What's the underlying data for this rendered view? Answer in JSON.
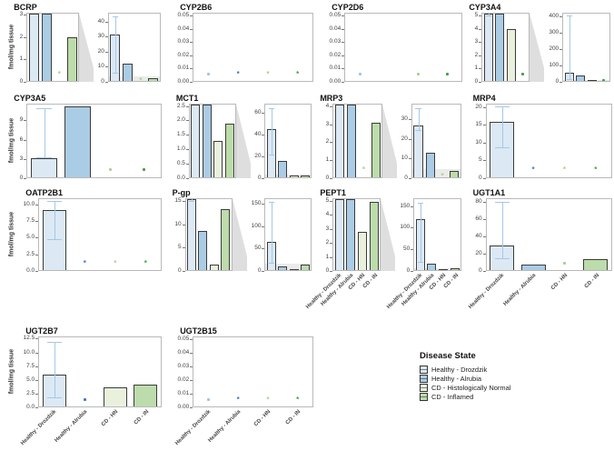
{
  "figure": {
    "ylabel": "fmol/mg tissue",
    "categories": [
      "Healthy - Drozdzik",
      "Healthy - Alrubia",
      "CD - HN",
      "CD - IN"
    ],
    "legend": {
      "title": "Disease State",
      "items": [
        {
          "label": "Healthy - Drozdzik",
          "color": "#dce9f5"
        },
        {
          "label": "Healthy - Alrubia",
          "color": "#abcce5"
        },
        {
          "label": "CD - Histologically Normal",
          "color": "#e9f1dd"
        },
        {
          "label": "CD - Inflamed",
          "color": "#bcdcab"
        }
      ]
    },
    "colors": {
      "fills": [
        "#dce9f5",
        "#abcce5",
        "#e9f1dd",
        "#bcdcab"
      ],
      "markers": [
        "#9cc6e6",
        "#3d7ab8",
        "#a9d18e",
        "#3fa33f"
      ],
      "bar_border": "#3b3b3b",
      "error_bar": "#a5c8e4",
      "panel_border": "#b9b9b9",
      "zoom_band": "#e3e3e3"
    }
  },
  "chart_data": [
    {
      "type": "bar",
      "title": "BCRP",
      "row": 0,
      "col": 0,
      "ylabel": true,
      "xlabels": false,
      "main": {
        "ylim": [
          0,
          3.1
        ],
        "ticks": [
          [
            0,
            "0"
          ],
          [
            1,
            "1"
          ],
          [
            2,
            "2"
          ],
          [
            3,
            "3"
          ]
        ]
      },
      "inset": {
        "ylim": [
          0,
          46
        ],
        "ticks": [
          [
            0,
            "0"
          ],
          [
            10,
            "10"
          ],
          [
            20,
            "20"
          ],
          [
            30,
            "30"
          ],
          [
            40,
            "40"
          ]
        ]
      },
      "groups": [
        {
          "kind": "bar",
          "value": 32,
          "error": [
            5,
            44
          ]
        },
        {
          "kind": "bar",
          "value": 12
        },
        {
          "kind": "marker",
          "glyph": "asterisk",
          "value": 0.3
        },
        {
          "kind": "bar",
          "value": 2
        }
      ]
    },
    {
      "type": "bar",
      "title": "CYP2B6",
      "row": 0,
      "col": 1,
      "ylabel": false,
      "xlabels": false,
      "main": {
        "ylim": [
          0,
          0.052
        ],
        "ticks": [
          [
            0,
            "0.00"
          ],
          [
            0.01,
            "0.01"
          ],
          [
            0.02,
            "0.02"
          ],
          [
            0.03,
            "0.03"
          ],
          [
            0.04,
            "0.04"
          ],
          [
            0.05,
            "0.05"
          ]
        ]
      },
      "groups": [
        {
          "kind": "marker",
          "glyph": "dot",
          "value": 0.005
        },
        {
          "kind": "marker",
          "glyph": "asterisk",
          "value": 0.005
        },
        {
          "kind": "marker",
          "glyph": "asterisk",
          "value": 0.005
        },
        {
          "kind": "marker",
          "glyph": "asterisk",
          "value": 0.005
        }
      ]
    },
    {
      "type": "bar",
      "title": "CYP2D6",
      "row": 0,
      "col": 2,
      "ylabel": false,
      "xlabels": false,
      "main": {
        "ylim": [
          0,
          0.052
        ],
        "ticks": [
          [
            0,
            "0.00"
          ],
          [
            0.01,
            "0.01"
          ],
          [
            0.02,
            "0.02"
          ],
          [
            0.03,
            "0.03"
          ],
          [
            0.04,
            "0.04"
          ],
          [
            0.05,
            "0.05"
          ]
        ]
      },
      "groups": [
        {
          "kind": "marker",
          "glyph": "dot",
          "value": 0.005
        },
        {
          "kind": "none"
        },
        {
          "kind": "marker",
          "glyph": "dot",
          "value": 0.005
        },
        {
          "kind": "marker",
          "glyph": "dot",
          "value": 0.005
        }
      ]
    },
    {
      "type": "bar",
      "title": "CYP3A4",
      "row": 0,
      "col": 3,
      "ylabel": false,
      "xlabels": false,
      "main": {
        "ylim": [
          0,
          5.2
        ],
        "ticks": [
          [
            0,
            "0"
          ],
          [
            1,
            "1"
          ],
          [
            2,
            "2"
          ],
          [
            3,
            "3"
          ],
          [
            4,
            "4"
          ],
          [
            5,
            "5"
          ]
        ]
      },
      "inset": {
        "ylim": [
          0,
          420
        ],
        "ticks": [
          [
            0,
            "0"
          ],
          [
            100,
            "100"
          ],
          [
            200,
            "200"
          ],
          [
            300,
            "300"
          ],
          [
            400,
            "400"
          ]
        ]
      },
      "groups": [
        {
          "kind": "bar",
          "value": 50,
          "error": [
            5,
            410
          ]
        },
        {
          "kind": "bar",
          "value": 35
        },
        {
          "kind": "bar",
          "value": 4
        },
        {
          "kind": "marker",
          "glyph": "dot",
          "value": 0.5
        }
      ]
    },
    {
      "type": "bar",
      "title": "CYP3A5",
      "row": 1,
      "col": 0,
      "ylabel": true,
      "xlabels": false,
      "main": {
        "ylim": [
          0,
          11.6
        ],
        "ticks": [
          [
            0,
            "0"
          ],
          [
            3,
            "3"
          ],
          [
            6,
            "6"
          ],
          [
            9,
            "9"
          ]
        ]
      },
      "groups": [
        {
          "kind": "bar",
          "value": 3,
          "error": [
            3,
            11
          ]
        },
        {
          "kind": "bar",
          "value": 11.3
        },
        {
          "kind": "marker",
          "glyph": "dot",
          "value": 1.2
        },
        {
          "kind": "marker",
          "glyph": "dot",
          "value": 1.2
        }
      ]
    },
    {
      "type": "bar",
      "title": "MCT1",
      "row": 1,
      "col": 1,
      "ylabel": false,
      "xlabels": false,
      "main": {
        "ylim": [
          0,
          2.58
        ],
        "ticks": [
          [
            0,
            "0.0"
          ],
          [
            0.5,
            "0.5"
          ],
          [
            1,
            "1.0"
          ],
          [
            1.5,
            "1.5"
          ],
          [
            2,
            "2.0"
          ],
          [
            2.5,
            "2.5"
          ]
        ]
      },
      "inset": {
        "ylim": [
          0,
          68
        ],
        "ticks": [
          [
            0,
            "0"
          ],
          [
            20,
            "20"
          ],
          [
            40,
            "40"
          ],
          [
            60,
            "60"
          ]
        ]
      },
      "groups": [
        {
          "kind": "bar",
          "value": 45,
          "error": [
            20,
            65
          ]
        },
        {
          "kind": "bar",
          "value": 15
        },
        {
          "kind": "bar",
          "value": 1.3
        },
        {
          "kind": "bar",
          "value": 1.9
        }
      ]
    },
    {
      "type": "bar",
      "title": "MRP3",
      "row": 1,
      "col": 2,
      "ylabel": false,
      "xlabels": false,
      "main": {
        "ylim": [
          0,
          4.15
        ],
        "ticks": [
          [
            0,
            "0"
          ],
          [
            1,
            "1"
          ],
          [
            2,
            "2"
          ],
          [
            3,
            "3"
          ],
          [
            4,
            "4"
          ]
        ]
      },
      "inset": {
        "ylim": [
          0,
          38
        ],
        "ticks": [
          [
            0,
            "0"
          ],
          [
            10,
            "10"
          ],
          [
            20,
            "20"
          ],
          [
            30,
            "30"
          ]
        ]
      },
      "groups": [
        {
          "kind": "bar",
          "value": 27,
          "error": [
            24,
            36
          ]
        },
        {
          "kind": "bar",
          "value": 13
        },
        {
          "kind": "marker",
          "glyph": "asterisk",
          "value": 0.4
        },
        {
          "kind": "bar",
          "value": 3.1
        }
      ]
    },
    {
      "type": "bar",
      "title": "MRP4",
      "row": 1,
      "col": 3,
      "ylabel": false,
      "xlabels": false,
      "main": {
        "ylim": [
          0,
          21
        ],
        "ticks": [
          [
            0,
            "0"
          ],
          [
            5,
            "5"
          ],
          [
            10,
            "10"
          ],
          [
            15,
            "15"
          ],
          [
            20,
            "20"
          ]
        ]
      },
      "groups": [
        {
          "kind": "bar",
          "value": 16,
          "error": [
            8.5,
            20.5
          ]
        },
        {
          "kind": "marker",
          "glyph": "asterisk",
          "value": 2
        },
        {
          "kind": "marker",
          "glyph": "asterisk",
          "value": 2
        },
        {
          "kind": "marker",
          "glyph": "asterisk",
          "value": 2
        }
      ]
    },
    {
      "type": "bar",
      "title": "OATP2B1",
      "row": 2,
      "col": 0,
      "ylabel": true,
      "xlabels": false,
      "main": {
        "ylim": [
          0,
          10.9
        ],
        "ticks": [
          [
            0,
            "0.0"
          ],
          [
            2.5,
            "2.5"
          ],
          [
            5,
            "5.0"
          ],
          [
            7.5,
            "7.5"
          ],
          [
            10,
            "10.0"
          ]
        ]
      },
      "groups": [
        {
          "kind": "bar",
          "value": 9.2,
          "error": [
            4.6,
            10.6
          ]
        },
        {
          "kind": "marker",
          "glyph": "asterisk",
          "value": 1
        },
        {
          "kind": "marker",
          "glyph": "asterisk",
          "value": 1
        },
        {
          "kind": "marker",
          "glyph": "asterisk",
          "value": 1
        }
      ]
    },
    {
      "type": "bar",
      "title": "P-gp",
      "row": 2,
      "col": 1,
      "ylabel": false,
      "xlabels": false,
      "main": {
        "ylim": [
          0,
          15.6
        ],
        "ticks": [
          [
            0,
            "0"
          ],
          [
            5,
            "5"
          ],
          [
            10,
            "10"
          ],
          [
            15,
            "15"
          ]
        ]
      },
      "inset": {
        "ylim": [
          0,
          162
        ],
        "ticks": [
          [
            0,
            "0"
          ],
          [
            50,
            "50"
          ],
          [
            100,
            "100"
          ],
          [
            150,
            "150"
          ]
        ]
      },
      "groups": [
        {
          "kind": "bar",
          "value": 65,
          "error": [
            15,
            155
          ]
        },
        {
          "kind": "bar",
          "value": 8.7
        },
        {
          "kind": "bar",
          "value": 1.2
        },
        {
          "kind": "bar",
          "value": 13.4
        }
      ]
    },
    {
      "type": "bar",
      "title": "PEPT1",
      "row": 2,
      "col": 2,
      "ylabel": false,
      "xlabels": true,
      "main": {
        "ylim": [
          0,
          5.2
        ],
        "ticks": [
          [
            0,
            "0"
          ],
          [
            1,
            "1"
          ],
          [
            2,
            "2"
          ],
          [
            3,
            "3"
          ],
          [
            4,
            "4"
          ],
          [
            5,
            "5"
          ]
        ]
      },
      "inset": {
        "ylim": [
          0,
          168
        ],
        "ticks": [
          [
            0,
            "0"
          ],
          [
            50,
            "50"
          ],
          [
            100,
            "100"
          ],
          [
            150,
            "150"
          ]
        ]
      },
      "groups": [
        {
          "kind": "bar",
          "value": 120,
          "error": [
            18,
            160
          ]
        },
        {
          "kind": "bar",
          "value": 15
        },
        {
          "kind": "bar",
          "value": 2.8
        },
        {
          "kind": "bar",
          "value": 5
        }
      ]
    },
    {
      "type": "bar",
      "title": "UGT1A1",
      "row": 2,
      "col": 3,
      "ylabel": false,
      "xlabels": true,
      "main": {
        "ylim": [
          0,
          84
        ],
        "ticks": [
          [
            0,
            "0"
          ],
          [
            20,
            "20"
          ],
          [
            40,
            "40"
          ],
          [
            60,
            "60"
          ],
          [
            80,
            "80"
          ]
        ]
      },
      "groups": [
        {
          "kind": "bar",
          "value": 29,
          "error": [
            13,
            81
          ]
        },
        {
          "kind": "bar",
          "value": 6
        },
        {
          "kind": "marker",
          "glyph": "dot",
          "value": 8
        },
        {
          "kind": "bar",
          "value": 13
        }
      ]
    },
    {
      "type": "bar",
      "title": "UGT2B7",
      "row": 3,
      "col": 0,
      "ylabel": true,
      "xlabels": true,
      "main": {
        "ylim": [
          0,
          12.9
        ],
        "ticks": [
          [
            0,
            "0.0"
          ],
          [
            2.5,
            "2.5"
          ],
          [
            5,
            "5.0"
          ],
          [
            7.5,
            "7.5"
          ],
          [
            10,
            "10.0"
          ],
          [
            12.5,
            "12.5"
          ]
        ]
      },
      "groups": [
        {
          "kind": "bar",
          "value": 6,
          "error": [
            1.5,
            12
          ]
        },
        {
          "kind": "marker",
          "glyph": "dot",
          "value": 1.2
        },
        {
          "kind": "bar",
          "value": 3.5
        },
        {
          "kind": "bar",
          "value": 4.1
        }
      ]
    },
    {
      "type": "bar",
      "title": "UGT2B15",
      "row": 3,
      "col": 1,
      "ylabel": false,
      "xlabels": true,
      "main": {
        "ylim": [
          0,
          0.052
        ],
        "ticks": [
          [
            0,
            "0.00"
          ],
          [
            0.01,
            "0.01"
          ],
          [
            0.02,
            "0.02"
          ],
          [
            0.03,
            "0.03"
          ],
          [
            0.04,
            "0.04"
          ],
          [
            0.05,
            "0.05"
          ]
        ]
      },
      "groups": [
        {
          "kind": "marker",
          "glyph": "dot",
          "value": 0.005
        },
        {
          "kind": "marker",
          "glyph": "asterisk",
          "value": 0.005
        },
        {
          "kind": "marker",
          "glyph": "asterisk",
          "value": 0.005
        },
        {
          "kind": "marker",
          "glyph": "asterisk",
          "value": 0.005
        }
      ]
    }
  ]
}
